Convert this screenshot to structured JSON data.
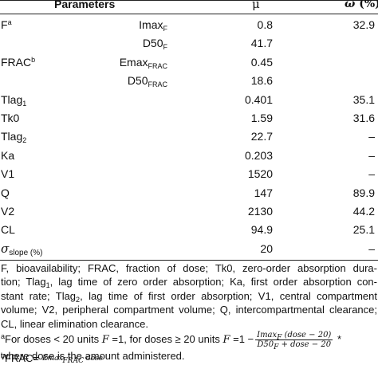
{
  "header": {
    "parameters": "Parameters",
    "mu": "μ",
    "omega": "ω",
    "omega_unit": "(%)"
  },
  "rows": [
    {
      "param": "F",
      "param_sup": "a",
      "sub": "Imax",
      "sub_sub": "F",
      "mu": "0.8",
      "omega": "32.9"
    },
    {
      "param": "",
      "param_sup": "",
      "sub": "D50",
      "sub_sub": "F",
      "mu": "41.7",
      "omega": ""
    },
    {
      "param": "FRAC",
      "param_sup": "b",
      "sub": "Emax",
      "sub_sub": "FRAC",
      "mu": "0.45",
      "omega": ""
    },
    {
      "param": "",
      "param_sup": "",
      "sub": "D50",
      "sub_sub": "FRAC",
      "mu": "18.6",
      "omega": ""
    },
    {
      "param": "Tlag",
      "param_sub": "1",
      "mu": "0.401",
      "omega": "35.1"
    },
    {
      "param": "Tk0",
      "mu": "1.59",
      "omega": "31.6"
    },
    {
      "param": "Tlag",
      "param_sub": "2",
      "mu": "22.7",
      "omega": "–"
    },
    {
      "param": "Ka",
      "mu": "0.203",
      "omega": "–"
    },
    {
      "param": "V1",
      "mu": "1520",
      "omega": "–"
    },
    {
      "param": "Q",
      "mu": "147",
      "omega": "89.9"
    },
    {
      "param": "V2",
      "mu": "2130",
      "omega": "44.2"
    },
    {
      "param": "CL",
      "mu": "94.9",
      "omega": "25.1"
    },
    {
      "param": "σ",
      "param_sub": "slope (%)",
      "mu": "20",
      "omega": "–"
    }
  ],
  "footnotes": {
    "abbrev_lines": [
      "F, bioavailability; FRAC, fraction of dose; Tk0, zero-order absorption dura-",
      "tion; Tlag",
      "1",
      ", lag time of zero order absorption; Ka, first order absorption con-",
      "stant rate; Tlag",
      "2",
      ", lag time of first order absorption; V1, central compartment",
      "volume; V2, peripheral compartment volume; Q, intercompartmental clearance;",
      "CL, linear elimination clearance."
    ],
    "note_a": {
      "marker": "a",
      "text1": "For doses < 20 units ",
      "F": "F",
      "text2": " =1, for doses ≥ 20 units ",
      "text3": " =1 −",
      "frac_num": "Imax",
      "frac_num_sub": "F",
      "frac_num_rest": " (dose − 20)",
      "frac_den": "D50",
      "frac_den_sub": "F",
      "frac_den_rest": " + dose − 20",
      "tail": " *",
      "line2": "where dose is the amount administered."
    },
    "note_b": {
      "marker": "b",
      "lhs": "FRAC=",
      "frac_num": "Emax",
      "frac_num_sub": "FRAC",
      "frac_num_rest": " dose"
    }
  }
}
